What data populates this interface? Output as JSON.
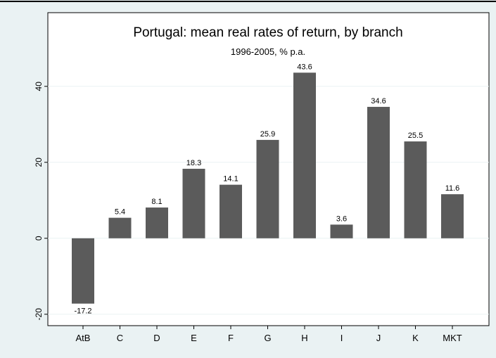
{
  "chart_data": {
    "type": "bar",
    "title": "Portugal: mean real rates of return, by branch",
    "subtitle": "1996-2005, % p.a.",
    "categories": [
      "AtB",
      "C",
      "D",
      "E",
      "F",
      "G",
      "H",
      "I",
      "J",
      "K",
      "MKT"
    ],
    "values": [
      -17.2,
      5.4,
      8.1,
      18.3,
      14.1,
      25.9,
      43.6,
      3.6,
      34.6,
      25.5,
      11.6
    ],
    "color": "#5b5b5b",
    "ylim": [
      -23,
      59.4
    ],
    "yticks": [
      -20,
      0,
      20,
      40
    ],
    "grid": true
  }
}
